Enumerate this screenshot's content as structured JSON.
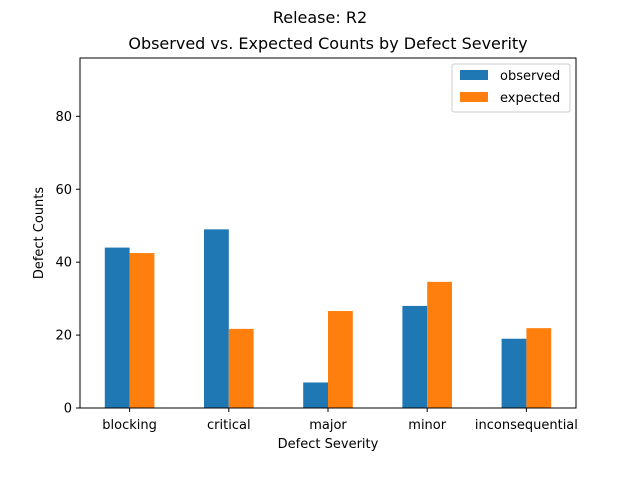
{
  "chart_data": {
    "type": "bar",
    "suptitle": "Release: R2",
    "title": "Observed vs. Expected Counts by Defect Severity",
    "xlabel": "Defect Severity",
    "ylabel": "Defect Counts",
    "categories": [
      "blocking",
      "critical",
      "major",
      "minor",
      "inconsequential"
    ],
    "series": [
      {
        "name": "observed",
        "values": [
          44,
          49,
          7,
          28,
          19
        ],
        "color": "#1f77b4"
      },
      {
        "name": "expected",
        "values": [
          42.5,
          21.7,
          26.6,
          34.6,
          21.9
        ],
        "color": "#ff7f0e"
      }
    ],
    "ylim": [
      0,
      96
    ],
    "yticks": [
      0,
      20,
      40,
      60,
      80
    ],
    "legend": "top-right",
    "grid": false
  }
}
